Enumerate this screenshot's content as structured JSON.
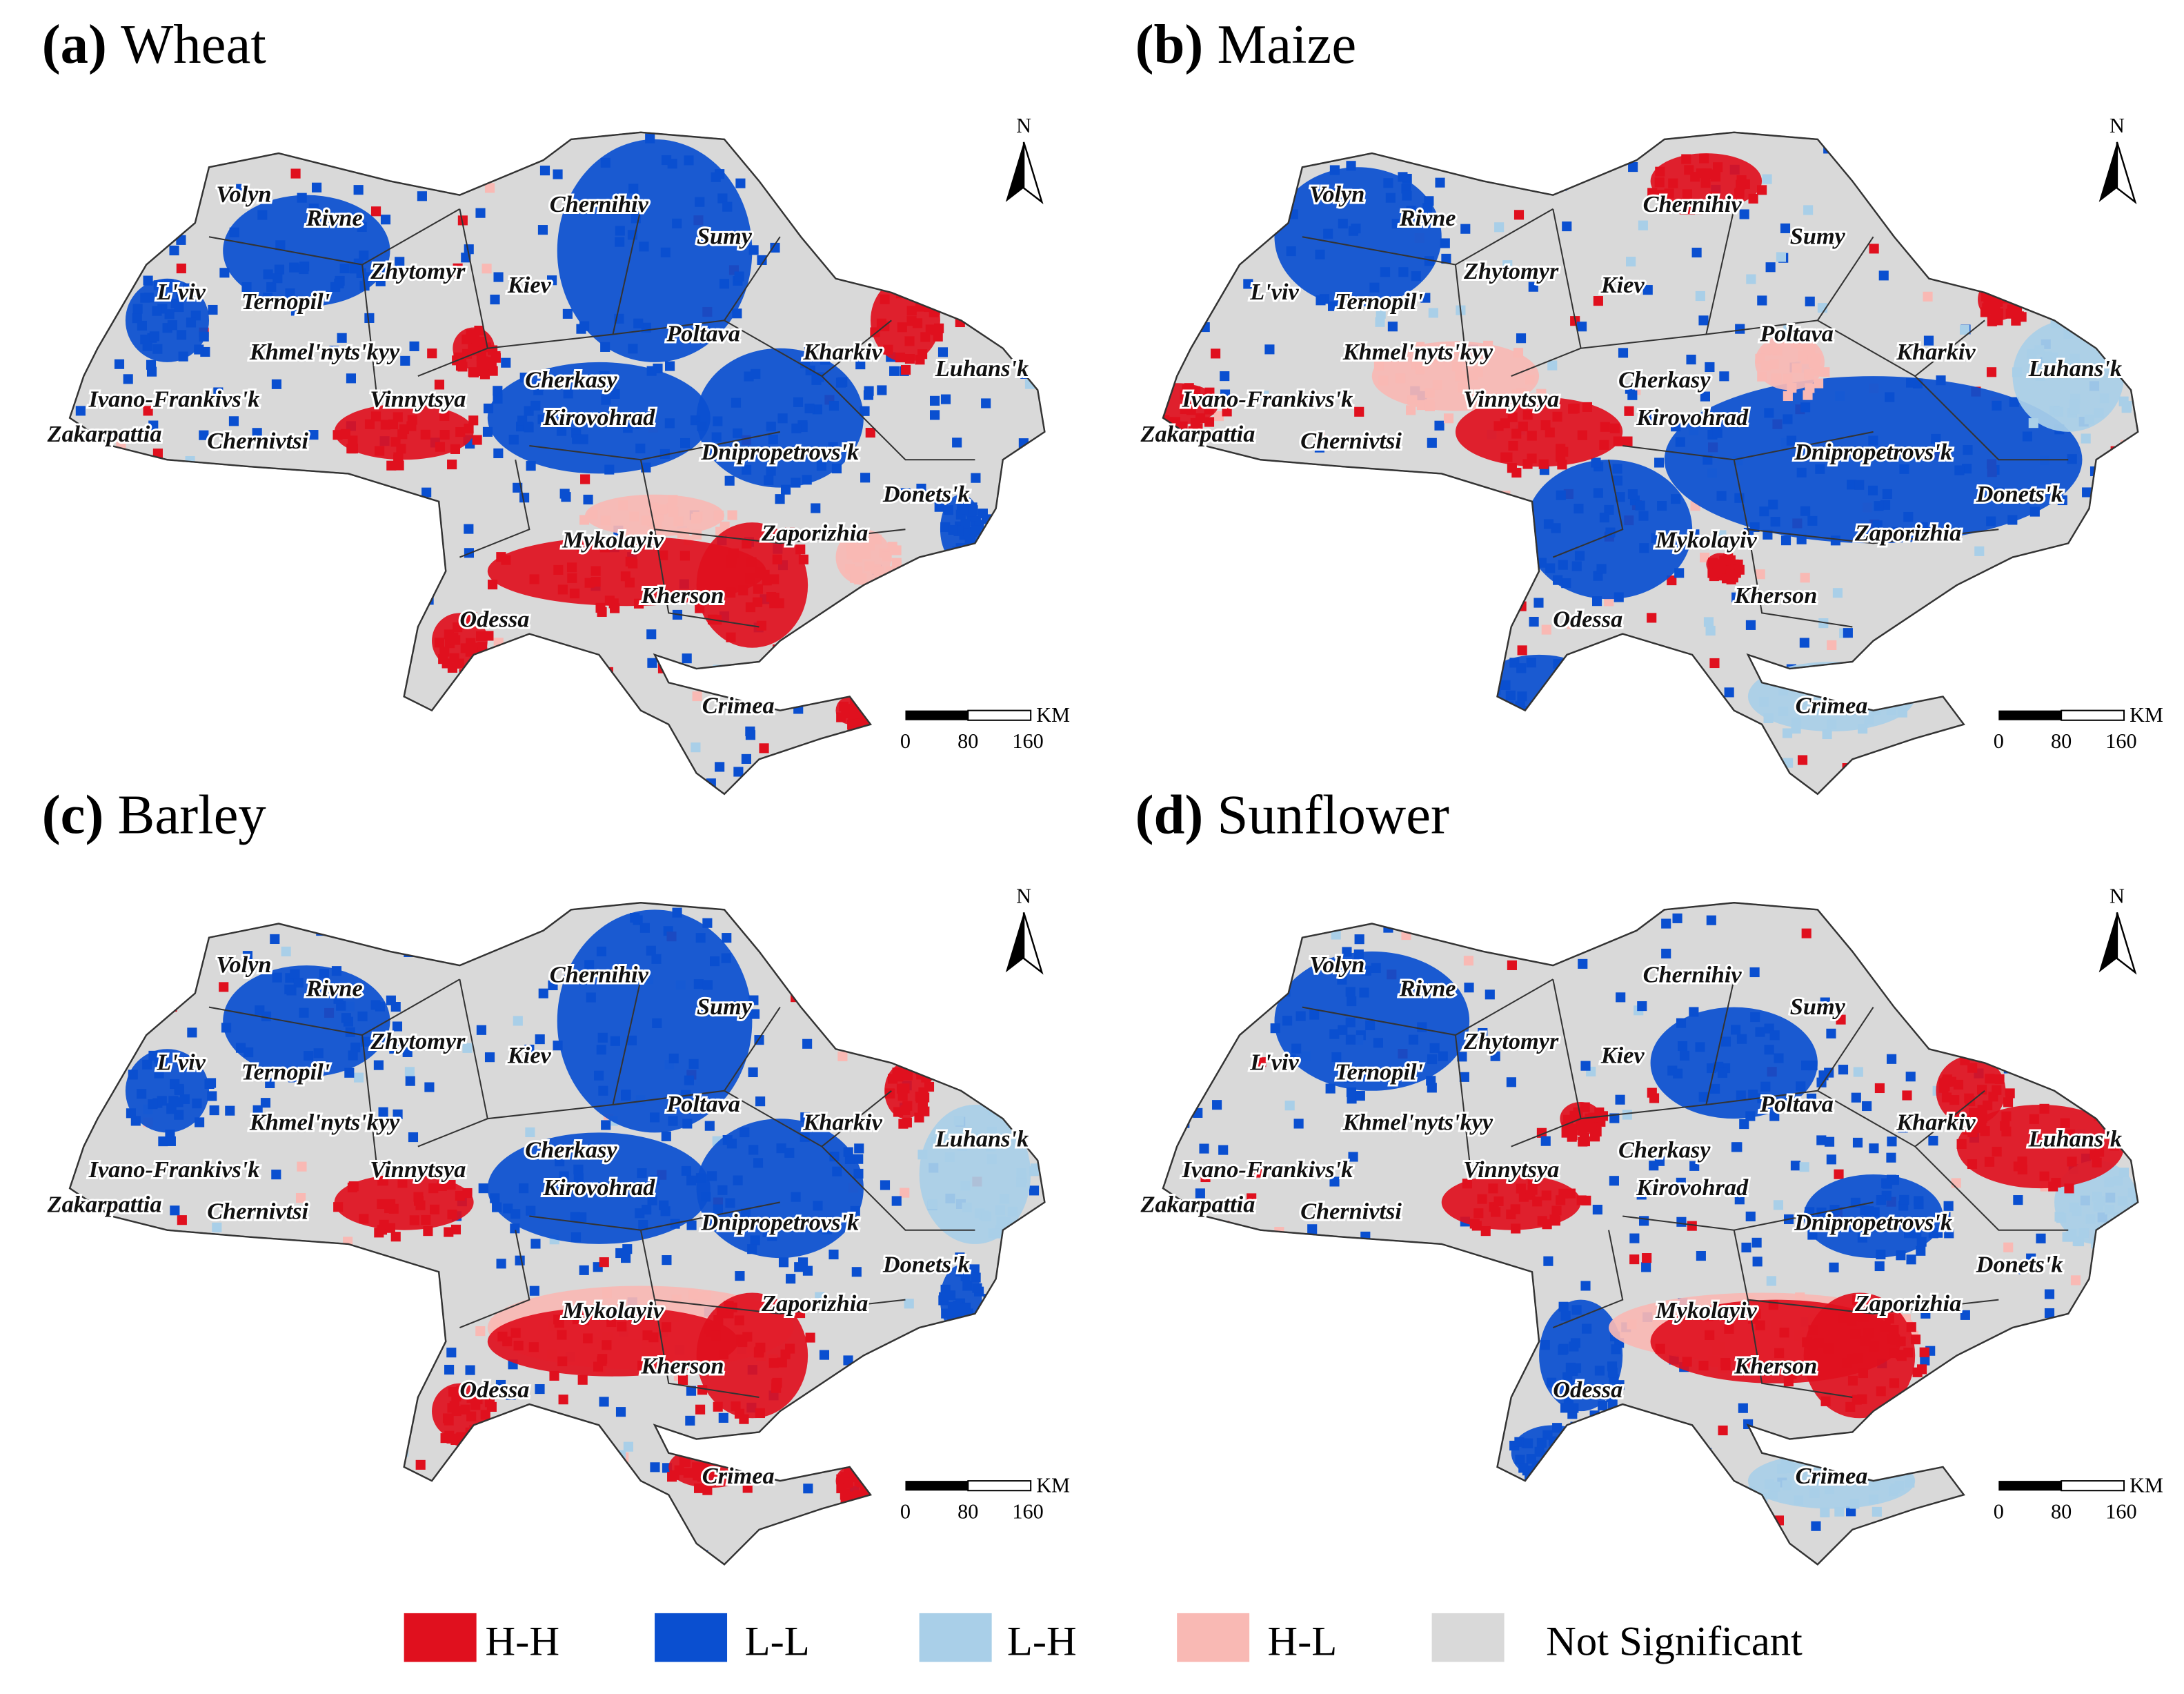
{
  "panels": [
    {
      "label": "(a)",
      "title": "Wheat"
    },
    {
      "label": "(b)",
      "title": "Maize"
    },
    {
      "label": "(c)",
      "title": "Barley"
    },
    {
      "label": "(d)",
      "title": "Sunflower"
    }
  ],
  "region_labels": [
    "Volyn",
    "Rivne",
    "Zhytomyr",
    "L'viv",
    "Ternopil'",
    "Kiev",
    "Chernihiv",
    "Sumy",
    "Khmel'nyts'kyy",
    "Cherkasy",
    "Poltava",
    "Kharkiv",
    "Luhans'k",
    "Ivano-Frankivs'k",
    "Vinnytsya",
    "Kirovohrad",
    "Zakarpattia",
    "Chernivtsi",
    "Dnipropetrovs'k",
    "Donets'k",
    "Mykolayiv",
    "Zaporizhia",
    "Kherson",
    "Odessa",
    "Crimea"
  ],
  "north_label": "N",
  "scale_bar": {
    "unit": "KM",
    "labels": [
      "0",
      "80",
      "160"
    ]
  },
  "legend": [
    {
      "name": "H-H",
      "color": "#e0101e"
    },
    {
      "name": "L-L",
      "color": "#0a4fd0"
    },
    {
      "name": "L-H",
      "color": "#a9cfe8"
    },
    {
      "name": "H-L",
      "color": "#f9b9b4"
    },
    {
      "name": "Not Significant",
      "color": "#d9d9d9"
    }
  ]
}
